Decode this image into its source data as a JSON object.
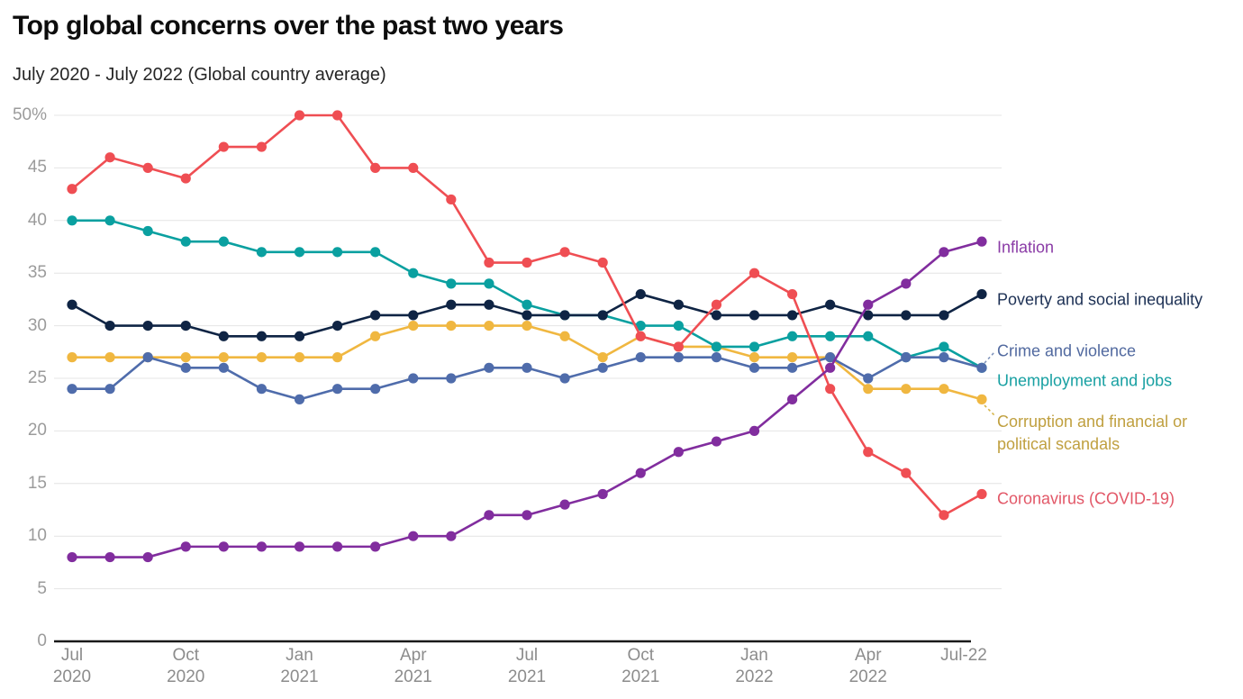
{
  "header": {
    "title": "Top global concerns over the past two years",
    "subtitle": "July 2020 - July 2022 (Global country average)"
  },
  "chart_data": {
    "type": "line",
    "title": "Top global concerns over the past two years",
    "subtitle": "July 2020 - July 2022 (Global country average)",
    "y_min": 0,
    "y_max": 50,
    "grid": true,
    "y_tick_labels": [
      "0",
      "5",
      "10",
      "15",
      "20",
      "25",
      "30",
      "35",
      "40",
      "45",
      "50%"
    ],
    "y_tick_values": [
      0,
      5,
      10,
      15,
      20,
      25,
      30,
      35,
      40,
      45,
      50
    ],
    "x_axis_ticks": [
      {
        "lines": [
          "Jul",
          "2020"
        ]
      },
      {
        "lines": [
          "Oct",
          "2020"
        ]
      },
      {
        "lines": [
          "Jan",
          "2021"
        ]
      },
      {
        "lines": [
          "Apr",
          "2021"
        ]
      },
      {
        "lines": [
          "Jul",
          "2021"
        ]
      },
      {
        "lines": [
          "Oct",
          "2021"
        ]
      },
      {
        "lines": [
          "Jan",
          "2022"
        ]
      },
      {
        "lines": [
          "Apr",
          "2022"
        ]
      },
      {
        "lines": [
          "Jul-22"
        ]
      }
    ],
    "categories": [
      "Jul 2020",
      "Aug 2020",
      "Sep 2020",
      "Oct 2020",
      "Nov 2020",
      "Dec 2020",
      "Jan 2021",
      "Feb 2021",
      "Mar 2021",
      "Apr 2021",
      "May 2021",
      "Jun 2021",
      "Jul 2021",
      "Aug 2021",
      "Sep 2021",
      "Oct 2021",
      "Nov 2021",
      "Dec 2021",
      "Jan 2022",
      "Feb 2022",
      "Mar 2022",
      "Apr 2022",
      "May 2022",
      "Jun 2022",
      "Jul 2022"
    ],
    "series": [
      {
        "key": "inflation",
        "label_lines": [
          "Inflation"
        ],
        "color": "#812d9e",
        "label_color": "#8a3ba6",
        "values": [
          8,
          8,
          8,
          9,
          9,
          9,
          9,
          9,
          9,
          10,
          10,
          12,
          12,
          13,
          14,
          16,
          18,
          19,
          20,
          23,
          26,
          32,
          34,
          37,
          38
        ]
      },
      {
        "key": "poverty",
        "label_lines": [
          "Poverty and social inequality"
        ],
        "color": "#0f2444",
        "label_color": "#1c3054",
        "values": [
          32,
          30,
          30,
          30,
          29,
          29,
          29,
          30,
          31,
          31,
          32,
          32,
          31,
          31,
          31,
          33,
          32,
          31,
          31,
          31,
          32,
          31,
          31,
          31,
          33
        ]
      },
      {
        "key": "crime",
        "label_lines": [
          "Crime and violence"
        ],
        "color": "#4f6cab",
        "label_color": "#51699f",
        "values": [
          24,
          24,
          27,
          26,
          26,
          24,
          23,
          24,
          24,
          25,
          25,
          26,
          26,
          25,
          26,
          27,
          27,
          27,
          26,
          26,
          27,
          25,
          27,
          27,
          26
        ]
      },
      {
        "key": "unemployment",
        "label_lines": [
          "Unemployment and jobs"
        ],
        "color": "#0aa0a0",
        "label_color": "#18a0a2",
        "values": [
          40,
          40,
          39,
          38,
          38,
          37,
          37,
          37,
          37,
          35,
          34,
          34,
          32,
          31,
          31,
          30,
          30,
          28,
          28,
          29,
          29,
          29,
          27,
          28,
          26
        ]
      },
      {
        "key": "corruption",
        "label_lines": [
          "Corruption and financial or",
          "political scandals"
        ],
        "color": "#f0b740",
        "label_color": "#c0a040",
        "values": [
          27,
          27,
          27,
          27,
          27,
          27,
          27,
          27,
          29,
          30,
          30,
          30,
          30,
          29,
          27,
          29,
          28,
          28,
          27,
          27,
          27,
          24,
          24,
          24,
          23
        ]
      },
      {
        "key": "coronavirus",
        "label_lines": [
          "Coronavirus (COVID-19)"
        ],
        "color": "#ef4e53",
        "label_color": "#e25767",
        "values": [
          43,
          46,
          45,
          44,
          47,
          47,
          50,
          50,
          45,
          45,
          42,
          36,
          36,
          37,
          36,
          29,
          28,
          32,
          35,
          33,
          24,
          18,
          16,
          12,
          14
        ]
      }
    ]
  }
}
